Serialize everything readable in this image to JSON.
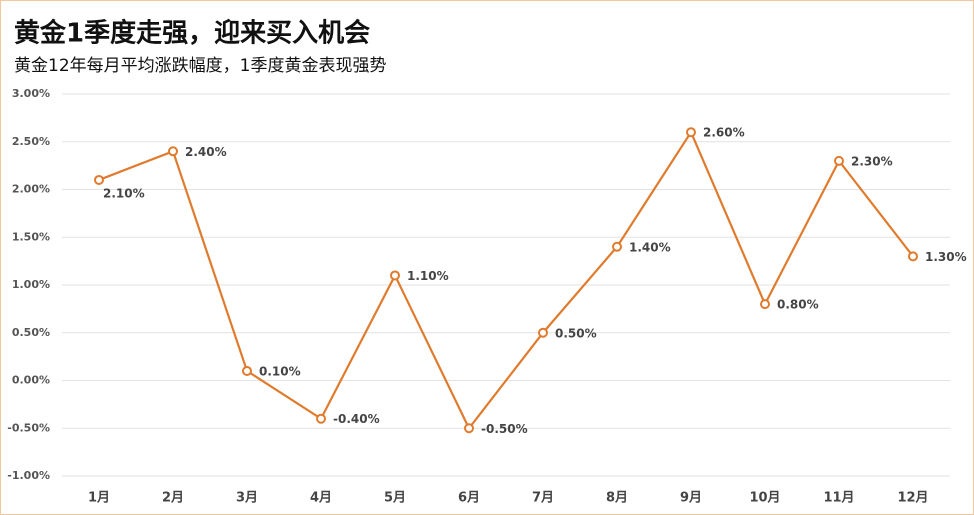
{
  "chart_data": {
    "type": "line",
    "title": "黄金1季度走强，迎来买入机会",
    "subtitle": "黄金12年每月平均涨跌幅度，1季度黄金表现强势",
    "categories": [
      "1月",
      "2月",
      "3月",
      "4月",
      "5月",
      "6月",
      "7月",
      "8月",
      "9月",
      "10月",
      "11月",
      "12月"
    ],
    "series": [
      {
        "name": "平均涨跌幅度",
        "color": "#e07b2e",
        "values": [
          2.1,
          2.4,
          0.1,
          -0.4,
          1.1,
          -0.5,
          0.5,
          1.4,
          2.6,
          0.8,
          2.3,
          1.3
        ],
        "value_labels": [
          "2.10%",
          "2.40%",
          "0.10%",
          "-0.40%",
          "1.10%",
          "-0.50%",
          "0.50%",
          "1.40%",
          "2.60%",
          "0.80%",
          "2.30%",
          "1.30%"
        ]
      }
    ],
    "ylim": [
      -1,
      3
    ],
    "yticks": [
      {
        "value": -1,
        "label": "-1.00%"
      },
      {
        "value": -0.5,
        "label": "-0.50%"
      },
      {
        "value": 0,
        "label": "0.00%"
      },
      {
        "value": 0.5,
        "label": "0.50%"
      },
      {
        "value": 1,
        "label": "1.00%"
      },
      {
        "value": 1.5,
        "label": "1.50%"
      },
      {
        "value": 2,
        "label": "2.00%"
      },
      {
        "value": 2.5,
        "label": "2.50%"
      },
      {
        "value": 3,
        "label": "3.00%"
      }
    ],
    "grid": true
  }
}
